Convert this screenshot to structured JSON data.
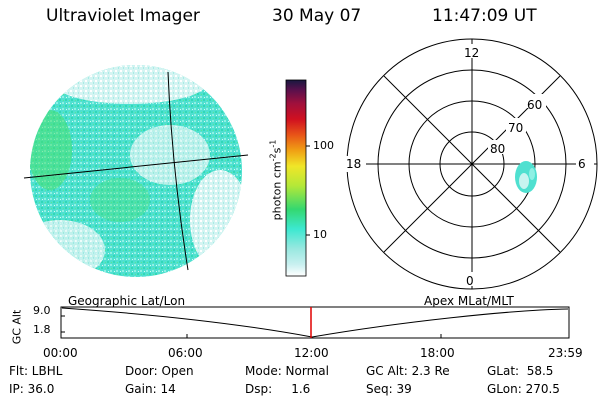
{
  "header": {
    "title": "Ultraviolet Imager",
    "date": "30 May 07",
    "time": "11:47:09 UT"
  },
  "colorbar": {
    "unit_label": "photon cm",
    "unit_sup1": "-2",
    "unit_mid": "s",
    "unit_sup2": "-1",
    "ticks": [
      "100",
      "10"
    ],
    "colors": [
      "#ffffff",
      "#c8f0f0",
      "#3ce8d0",
      "#34d870",
      "#b4e838",
      "#f0e628",
      "#f0a014",
      "#e85418",
      "#d01020",
      "#a0103c",
      "#58104c",
      "#181840"
    ]
  },
  "polar_plot": {
    "mlt_labels": {
      "top": "12",
      "left": "18",
      "right": "6",
      "bottom": "0"
    },
    "lat_labels": [
      "60",
      "70",
      "80"
    ]
  },
  "timeline": {
    "axis_label": "GC Alt",
    "left_title": "Geographic Lat/Lon",
    "right_title": "Apex MLat/MLT",
    "y_ticks": [
      "9.0",
      "1.8"
    ],
    "x_ticks": [
      "00:00",
      "06:00",
      "12:00",
      "18:00",
      "23:59"
    ],
    "marker_color": "#e00000"
  },
  "info": {
    "flt": "Flt: LBHL",
    "ip": "IP: 36.0",
    "door": "Door: Open",
    "gain": "Gain: 14",
    "mode": "Mode: Normal",
    "dsp": "Dsp:     1.6",
    "gc_alt": "GC Alt: 2.3 Re",
    "seq": "Seq: 39",
    "glat": "GLat:  58.5",
    "glon": "GLon: 270.5"
  }
}
